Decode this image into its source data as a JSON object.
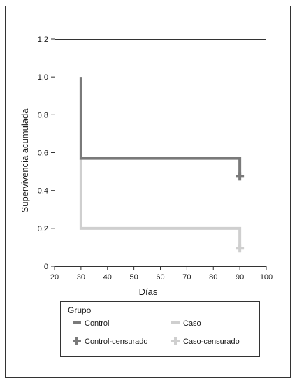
{
  "chart_data": {
    "type": "line",
    "step": true,
    "xlabel": "Días",
    "ylabel": "Supervivencia acumulada",
    "xlim": [
      20,
      100
    ],
    "ylim": [
      0,
      1.2
    ],
    "x_ticks": [
      "20",
      "30",
      "40",
      "50",
      "60",
      "70",
      "80",
      "90",
      "100"
    ],
    "y_ticks": [
      "0",
      "0,2",
      "0,4",
      "0,6",
      "0,8",
      "1,0",
      "1,2"
    ],
    "grid": false,
    "legend_position": "bottom",
    "legend_title": "Grupo",
    "series": [
      {
        "name": "Control",
        "color": "#7a7a7a",
        "steps": [
          {
            "x": 30,
            "y": 1.0
          },
          {
            "x": 30,
            "y": 0.57
          },
          {
            "x": 90,
            "y": 0.57
          },
          {
            "x": 90,
            "y": 0.48
          }
        ],
        "censored": {
          "name": "Control-censurado",
          "x": 90,
          "y": 0.475
        }
      },
      {
        "name": "Caso",
        "color": "#cfcfcf",
        "steps": [
          {
            "x": 30,
            "y": 0.57
          },
          {
            "x": 30,
            "y": 0.2
          },
          {
            "x": 90,
            "y": 0.2
          },
          {
            "x": 90,
            "y": 0.1
          }
        ],
        "censored": {
          "name": "Caso-censurado",
          "x": 90,
          "y": 0.095
        }
      }
    ]
  }
}
